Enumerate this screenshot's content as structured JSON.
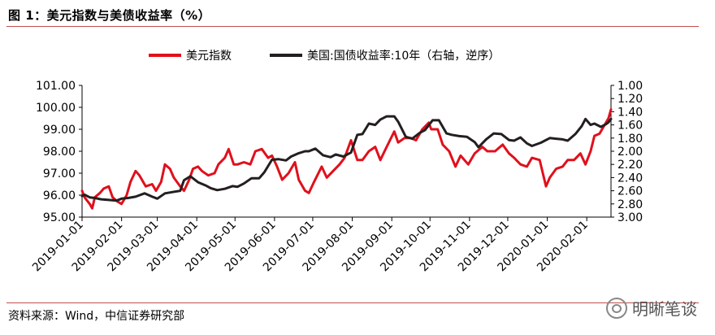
{
  "title": "图 1：美元指数与美债收益率（%）",
  "source": "资料来源：Wind，中信证券研究部",
  "watermark": "明晰笔谈",
  "colors": {
    "usd": "#e0101c",
    "yield": "#231f20",
    "rule": "#c0504d"
  },
  "chart_data": {
    "type": "line",
    "legend_position": "top-center",
    "grid": false,
    "x_ticks": [
      "2019-01-01",
      "2019-02-01",
      "2019-03-01",
      "2019-04-01",
      "2019-05-01",
      "2019-06-01",
      "2019-07-01",
      "2019-08-01",
      "2019-09-01",
      "2019-10-01",
      "2019-11-01",
      "2019-12-01",
      "2020-01-01",
      "2020-02-01"
    ],
    "x_range": [
      "2019-01-01",
      "2020-02-20"
    ],
    "left_axis": {
      "ylim": [
        95,
        101
      ],
      "ticks": [
        "95.00",
        "96.00",
        "97.00",
        "98.00",
        "99.00",
        "100.00",
        "101.00"
      ]
    },
    "right_axis": {
      "ylim": [
        1.0,
        3.0
      ],
      "inverted": true,
      "ticks": [
        "1.00",
        "1.20",
        "1.40",
        "1.60",
        "1.80",
        "2.00",
        "2.20",
        "2.40",
        "2.60",
        "2.80",
        "3.00"
      ]
    },
    "series": [
      {
        "name": "美元指数",
        "axis": "left",
        "color": "#e0101c",
        "points": [
          [
            "2019-01-01",
            96.2
          ],
          [
            "2019-01-03",
            95.9
          ],
          [
            "2019-01-07",
            95.6
          ],
          [
            "2019-01-09",
            95.4
          ],
          [
            "2019-01-11",
            95.9
          ],
          [
            "2019-01-15",
            96.1
          ],
          [
            "2019-01-18",
            96.3
          ],
          [
            "2019-01-22",
            96.4
          ],
          [
            "2019-01-25",
            95.9
          ],
          [
            "2019-01-29",
            95.7
          ],
          [
            "2019-02-01",
            95.6
          ],
          [
            "2019-02-05",
            96.0
          ],
          [
            "2019-02-08",
            96.6
          ],
          [
            "2019-02-12",
            97.1
          ],
          [
            "2019-02-15",
            96.9
          ],
          [
            "2019-02-20",
            96.4
          ],
          [
            "2019-02-25",
            96.5
          ],
          [
            "2019-02-28",
            96.2
          ],
          [
            "2019-03-04",
            96.6
          ],
          [
            "2019-03-07",
            97.4
          ],
          [
            "2019-03-11",
            97.2
          ],
          [
            "2019-03-14",
            96.8
          ],
          [
            "2019-03-19",
            96.4
          ],
          [
            "2019-03-22",
            96.2
          ],
          [
            "2019-03-26",
            96.7
          ],
          [
            "2019-03-29",
            97.2
          ],
          [
            "2019-04-02",
            97.3
          ],
          [
            "2019-04-05",
            97.1
          ],
          [
            "2019-04-10",
            96.9
          ],
          [
            "2019-04-15",
            97.0
          ],
          [
            "2019-04-18",
            97.4
          ],
          [
            "2019-04-23",
            97.7
          ],
          [
            "2019-04-26",
            98.1
          ],
          [
            "2019-04-30",
            97.4
          ],
          [
            "2019-05-03",
            97.4
          ],
          [
            "2019-05-08",
            97.5
          ],
          [
            "2019-05-13",
            97.4
          ],
          [
            "2019-05-17",
            98.0
          ],
          [
            "2019-05-22",
            98.1
          ],
          [
            "2019-05-27",
            97.7
          ],
          [
            "2019-05-30",
            97.8
          ],
          [
            "2019-06-03",
            97.3
          ],
          [
            "2019-06-07",
            96.7
          ],
          [
            "2019-06-12",
            97.0
          ],
          [
            "2019-06-17",
            97.5
          ],
          [
            "2019-06-20",
            96.7
          ],
          [
            "2019-06-25",
            96.2
          ],
          [
            "2019-06-28",
            96.1
          ],
          [
            "2019-07-02",
            96.6
          ],
          [
            "2019-07-08",
            97.3
          ],
          [
            "2019-07-12",
            96.8
          ],
          [
            "2019-07-17",
            97.1
          ],
          [
            "2019-07-22",
            97.4
          ],
          [
            "2019-07-26",
            97.7
          ],
          [
            "2019-07-31",
            98.5
          ],
          [
            "2019-08-05",
            97.6
          ],
          [
            "2019-08-09",
            97.6
          ],
          [
            "2019-08-14",
            98.0
          ],
          [
            "2019-08-19",
            98.2
          ],
          [
            "2019-08-23",
            97.6
          ],
          [
            "2019-08-28",
            98.2
          ],
          [
            "2019-09-03",
            98.9
          ],
          [
            "2019-09-06",
            98.4
          ],
          [
            "2019-09-11",
            98.6
          ],
          [
            "2019-09-16",
            98.6
          ],
          [
            "2019-09-20",
            98.5
          ],
          [
            "2019-09-25",
            99.0
          ],
          [
            "2019-09-30",
            99.3
          ],
          [
            "2019-10-02",
            99.0
          ],
          [
            "2019-10-07",
            99.0
          ],
          [
            "2019-10-11",
            98.3
          ],
          [
            "2019-10-16",
            98.0
          ],
          [
            "2019-10-21",
            97.3
          ],
          [
            "2019-10-25",
            97.8
          ],
          [
            "2019-10-31",
            97.4
          ],
          [
            "2019-11-05",
            97.9
          ],
          [
            "2019-11-11",
            98.2
          ],
          [
            "2019-11-15",
            98.0
          ],
          [
            "2019-11-21",
            98.0
          ],
          [
            "2019-11-27",
            98.3
          ],
          [
            "2019-12-02",
            97.9
          ],
          [
            "2019-12-06",
            97.7
          ],
          [
            "2019-12-11",
            97.4
          ],
          [
            "2019-12-16",
            97.3
          ],
          [
            "2019-12-20",
            97.7
          ],
          [
            "2019-12-26",
            97.6
          ],
          [
            "2019-12-31",
            96.4
          ],
          [
            "2020-01-03",
            96.8
          ],
          [
            "2020-01-08",
            97.2
          ],
          [
            "2020-01-13",
            97.3
          ],
          [
            "2020-01-17",
            97.6
          ],
          [
            "2020-01-22",
            97.6
          ],
          [
            "2020-01-27",
            97.9
          ],
          [
            "2020-01-31",
            97.4
          ],
          [
            "2020-02-04",
            98.0
          ],
          [
            "2020-02-07",
            98.7
          ],
          [
            "2020-02-11",
            98.8
          ],
          [
            "2020-02-14",
            99.1
          ],
          [
            "2020-02-18",
            99.5
          ],
          [
            "2020-02-20",
            99.9
          ]
        ]
      },
      {
        "name": "美国:国债收益率:10年（右轴，逆序）",
        "axis": "right",
        "color": "#231f20",
        "points": [
          [
            "2019-01-01",
            2.68
          ],
          [
            "2019-01-03",
            2.66
          ],
          [
            "2019-01-07",
            2.7
          ],
          [
            "2019-01-11",
            2.71
          ],
          [
            "2019-01-16",
            2.73
          ],
          [
            "2019-01-22",
            2.74
          ],
          [
            "2019-01-28",
            2.75
          ],
          [
            "2019-02-01",
            2.72
          ],
          [
            "2019-02-06",
            2.71
          ],
          [
            "2019-02-12",
            2.69
          ],
          [
            "2019-02-19",
            2.64
          ],
          [
            "2019-02-25",
            2.69
          ],
          [
            "2019-03-01",
            2.72
          ],
          [
            "2019-03-07",
            2.64
          ],
          [
            "2019-03-13",
            2.62
          ],
          [
            "2019-03-19",
            2.6
          ],
          [
            "2019-03-22",
            2.44
          ],
          [
            "2019-03-27",
            2.38
          ],
          [
            "2019-04-02",
            2.47
          ],
          [
            "2019-04-08",
            2.52
          ],
          [
            "2019-04-12",
            2.56
          ],
          [
            "2019-04-17",
            2.59
          ],
          [
            "2019-04-23",
            2.57
          ],
          [
            "2019-04-29",
            2.53
          ],
          [
            "2019-05-03",
            2.54
          ],
          [
            "2019-05-08",
            2.49
          ],
          [
            "2019-05-14",
            2.41
          ],
          [
            "2019-05-20",
            2.41
          ],
          [
            "2019-05-24",
            2.32
          ],
          [
            "2019-05-30",
            2.13
          ],
          [
            "2019-06-04",
            2.12
          ],
          [
            "2019-06-10",
            2.14
          ],
          [
            "2019-06-14",
            2.08
          ],
          [
            "2019-06-20",
            2.03
          ],
          [
            "2019-06-25",
            2.0
          ],
          [
            "2019-06-28",
            2.0
          ],
          [
            "2019-07-03",
            1.96
          ],
          [
            "2019-07-09",
            2.06
          ],
          [
            "2019-07-15",
            2.09
          ],
          [
            "2019-07-19",
            2.05
          ],
          [
            "2019-07-25",
            2.08
          ],
          [
            "2019-07-31",
            2.02
          ],
          [
            "2019-08-05",
            1.75
          ],
          [
            "2019-08-09",
            1.74
          ],
          [
            "2019-08-14",
            1.58
          ],
          [
            "2019-08-19",
            1.6
          ],
          [
            "2019-08-23",
            1.52
          ],
          [
            "2019-08-28",
            1.47
          ],
          [
            "2019-09-03",
            1.47
          ],
          [
            "2019-09-06",
            1.55
          ],
          [
            "2019-09-12",
            1.78
          ],
          [
            "2019-09-17",
            1.81
          ],
          [
            "2019-09-23",
            1.72
          ],
          [
            "2019-09-27",
            1.68
          ],
          [
            "2019-10-03",
            1.53
          ],
          [
            "2019-10-08",
            1.53
          ],
          [
            "2019-10-14",
            1.73
          ],
          [
            "2019-10-18",
            1.75
          ],
          [
            "2019-10-24",
            1.77
          ],
          [
            "2019-10-30",
            1.78
          ],
          [
            "2019-11-05",
            1.86
          ],
          [
            "2019-11-08",
            1.94
          ],
          [
            "2019-11-14",
            1.82
          ],
          [
            "2019-11-20",
            1.73
          ],
          [
            "2019-11-26",
            1.74
          ],
          [
            "2019-12-02",
            1.83
          ],
          [
            "2019-12-06",
            1.84
          ],
          [
            "2019-12-11",
            1.79
          ],
          [
            "2019-12-16",
            1.88
          ],
          [
            "2019-12-20",
            1.92
          ],
          [
            "2019-12-27",
            1.87
          ],
          [
            "2020-01-03",
            1.8
          ],
          [
            "2020-01-08",
            1.81
          ],
          [
            "2020-01-13",
            1.82
          ],
          [
            "2020-01-17",
            1.84
          ],
          [
            "2020-01-23",
            1.74
          ],
          [
            "2020-01-28",
            1.62
          ],
          [
            "2020-01-31",
            1.51
          ],
          [
            "2020-02-04",
            1.6
          ],
          [
            "2020-02-07",
            1.58
          ],
          [
            "2020-02-12",
            1.63
          ],
          [
            "2020-02-16",
            1.59
          ],
          [
            "2020-02-18",
            1.56
          ],
          [
            "2020-02-20",
            1.51
          ]
        ]
      }
    ]
  }
}
